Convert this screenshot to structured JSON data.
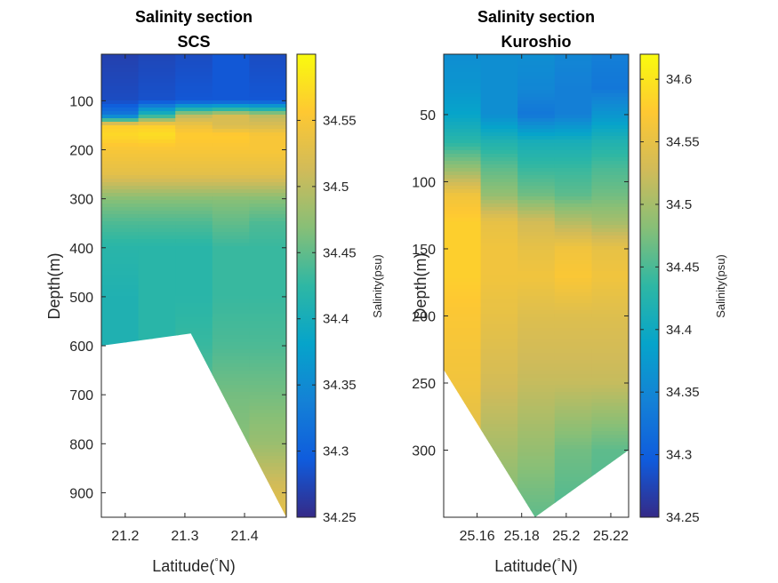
{
  "colors": {
    "parula": [
      "#352a87",
      "#0f5cdd",
      "#1481d6",
      "#06a4ca",
      "#2eb7a4",
      "#87bf77",
      "#d1bb59",
      "#fec832",
      "#f9fb0e"
    ],
    "mask": "#ffffff",
    "axis": "#262626"
  },
  "chart_data": [
    {
      "type": "heatmap",
      "title": "Salinity section",
      "subtitle": "SCS",
      "xlabel": "Latitude(",
      "xlabel_degree": "°",
      "xlabel_unit": "N)",
      "ylabel": "Depth(m)",
      "xlim": [
        21.16,
        21.47
      ],
      "ylim": [
        5,
        950
      ],
      "y_reversed": true,
      "x_ticks": [
        21.2,
        21.3,
        21.4
      ],
      "x_tick_labels": [
        "21.2",
        "21.3",
        "21.4"
      ],
      "y_ticks": [
        100,
        200,
        300,
        400,
        500,
        600,
        700,
        800,
        900
      ],
      "y_tick_labels": [
        "100",
        "200",
        "300",
        "400",
        "500",
        "600",
        "700",
        "800",
        "900"
      ],
      "colorbar": {
        "label": "Salinity(psu)",
        "clim": [
          34.25,
          34.6
        ],
        "ticks": [
          34.25,
          34.3,
          34.35,
          34.4,
          34.45,
          34.5,
          34.55
        ],
        "tick_labels": [
          "34.25",
          "34.3",
          "34.35",
          "34.4",
          "34.45",
          "34.5",
          "34.55"
        ]
      },
      "stations_x": [
        21.16,
        21.31,
        21.47
      ],
      "bottom_depth": [
        600,
        575,
        950
      ],
      "profile_depth": [
        5,
        100,
        130,
        150,
        170,
        200,
        250,
        300,
        350,
        400,
        500,
        600,
        700,
        800,
        900,
        950
      ],
      "salinity": [
        [
          34.27,
          34.275,
          34.28,
          34.29,
          34.28
        ],
        [
          34.28,
          34.285,
          34.29,
          34.29,
          34.29
        ],
        [
          34.33,
          34.42,
          34.5,
          34.52,
          34.5
        ],
        [
          34.56,
          34.56,
          34.54,
          34.52,
          34.52
        ],
        [
          34.57,
          34.575,
          34.56,
          34.56,
          34.55
        ],
        [
          34.55,
          34.55,
          34.55,
          34.55,
          34.55
        ],
        [
          34.53,
          34.53,
          34.53,
          34.53,
          34.53
        ],
        [
          34.47,
          34.47,
          34.47,
          34.47,
          34.47
        ],
        [
          34.44,
          34.44,
          34.44,
          34.45,
          34.44
        ],
        [
          34.42,
          34.42,
          34.42,
          34.43,
          34.43
        ],
        [
          34.41,
          34.42,
          34.42,
          34.43,
          34.43
        ],
        [
          34.41,
          34.42,
          34.43,
          34.44,
          34.44
        ],
        [
          34.44,
          34.44,
          34.45,
          34.46,
          34.46
        ],
        [
          34.47,
          34.47,
          34.47,
          34.47,
          34.48
        ],
        [
          34.5,
          34.5,
          34.5,
          34.5,
          34.52
        ],
        [
          34.52,
          34.52,
          34.52,
          34.52,
          34.53
        ]
      ]
    },
    {
      "type": "heatmap",
      "title": "Salinity section",
      "subtitle": "Kuroshio",
      "xlabel": "Latitude(",
      "xlabel_degree": "°",
      "xlabel_unit": "N)",
      "ylabel": "Depth(m)",
      "xlim": [
        25.145,
        25.228
      ],
      "ylim": [
        5,
        350
      ],
      "y_reversed": true,
      "x_ticks": [
        25.16,
        25.18,
        25.2,
        25.22
      ],
      "x_tick_labels": [
        "25.16",
        "25.18",
        "25.2",
        "25.22"
      ],
      "y_ticks": [
        50,
        100,
        150,
        200,
        250,
        300
      ],
      "y_tick_labels": [
        "50",
        "100",
        "150",
        "200",
        "250",
        "300"
      ],
      "colorbar": {
        "label": "Salinity(psu)",
        "clim": [
          34.25,
          34.62
        ],
        "ticks": [
          34.25,
          34.3,
          34.35,
          34.4,
          34.45,
          34.5,
          34.55,
          34.6
        ],
        "tick_labels": [
          "34.25",
          "34.3",
          "34.35",
          "34.4",
          "34.45",
          "34.5",
          "34.55",
          "34.6"
        ]
      },
      "stations_x": [
        25.145,
        25.186,
        25.228
      ],
      "bottom_depth": [
        240,
        350,
        300
      ],
      "profile_depth": [
        5,
        30,
        50,
        70,
        90,
        110,
        130,
        150,
        170,
        200,
        250,
        300,
        350
      ],
      "salinity": [
        [
          34.36,
          34.36,
          34.36,
          34.35,
          34.34
        ],
        [
          34.37,
          34.36,
          34.35,
          34.34,
          34.33
        ],
        [
          34.39,
          34.36,
          34.33,
          34.34,
          34.37
        ],
        [
          34.43,
          34.42,
          34.41,
          34.41,
          34.42
        ],
        [
          34.49,
          34.46,
          34.44,
          34.44,
          34.45
        ],
        [
          34.56,
          34.49,
          34.47,
          34.46,
          34.47
        ],
        [
          34.58,
          34.55,
          34.53,
          34.51,
          34.5
        ],
        [
          34.58,
          34.56,
          34.55,
          34.56,
          34.55
        ],
        [
          34.58,
          34.56,
          34.56,
          34.57,
          34.56
        ],
        [
          34.57,
          34.55,
          34.54,
          34.54,
          34.54
        ],
        [
          34.56,
          34.53,
          34.52,
          34.52,
          34.52
        ],
        [
          34.54,
          34.5,
          34.49,
          34.47,
          34.46
        ],
        [
          34.48,
          34.47,
          34.46,
          34.45,
          34.45
        ]
      ]
    }
  ]
}
